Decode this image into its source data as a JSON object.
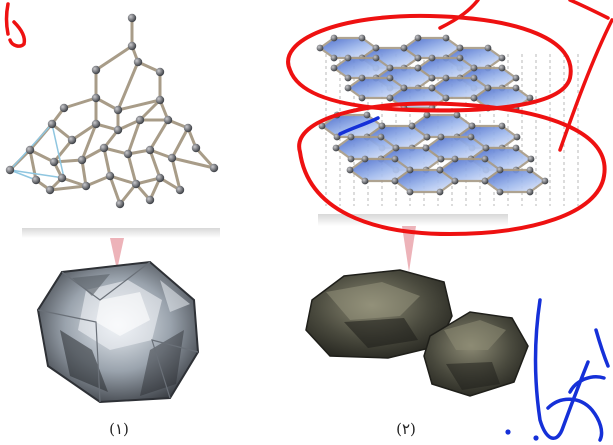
{
  "captions": {
    "left": "(۱)",
    "right": "(۲)"
  },
  "colors": {
    "bond": "#a89c88",
    "atom": "#55585d",
    "sheet_fill": "#7f9fdc",
    "annotation_red": "#ee1111",
    "annotation_blue": "#1530d8",
    "pointer_pink": "#e8a0a8"
  },
  "figures": {
    "left": {
      "structure": "diamond-lattice",
      "sample": "diamond-crystal"
    },
    "right": {
      "structure": "graphite-layers",
      "sample": "graphite-rock"
    }
  }
}
